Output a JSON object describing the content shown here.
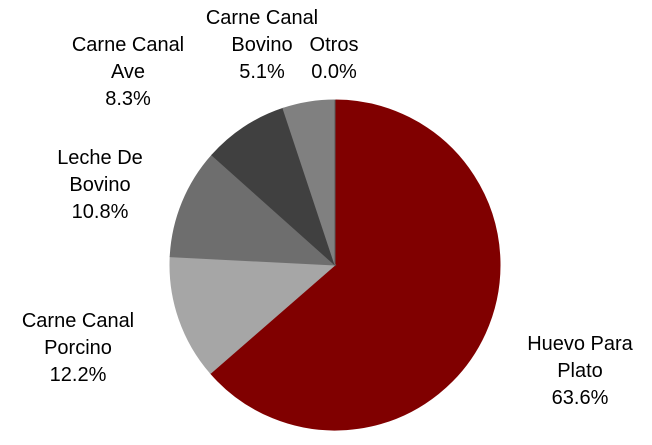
{
  "chart_data": {
    "type": "pie",
    "categories": [
      "Huevo Para Plato",
      "Carne Canal Porcino",
      "Leche De Bovino",
      "Carne Canal Ave",
      "Carne Canal Bovino",
      "Otros"
    ],
    "values": [
      63.6,
      12.2,
      10.8,
      8.3,
      5.1,
      0.0
    ],
    "value_labels": [
      "63.6%",
      "12.2%",
      "10.8%",
      "8.3%",
      "5.1%",
      "0.0%"
    ],
    "colors": [
      "#800000",
      "#a6a6a6",
      "#6e6e6e",
      "#404040",
      "#808080",
      "#5a5a5a"
    ]
  }
}
